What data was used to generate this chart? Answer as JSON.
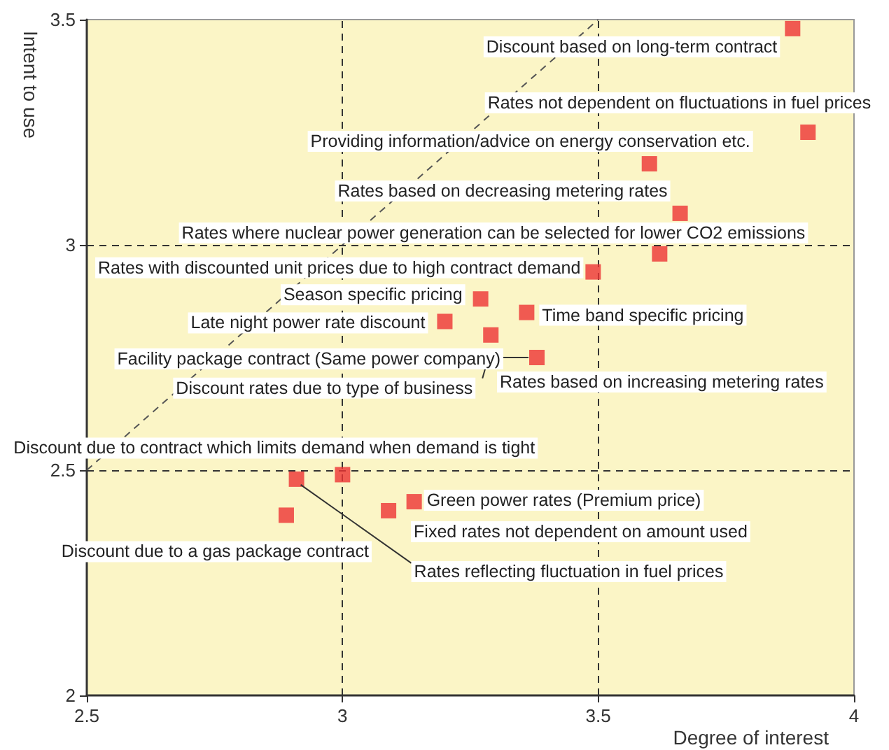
{
  "chart_data": {
    "type": "scatter",
    "xlabel": "Degree of interest",
    "ylabel": "Intent to use",
    "xlim": [
      2.5,
      4
    ],
    "xticks": [
      2.5,
      3,
      3.5,
      4
    ],
    "ylim": [
      2,
      3.5
    ],
    "yticks": [
      2,
      2.5,
      3,
      3.5
    ],
    "grid": false,
    "marker": "square",
    "series": [
      {
        "color": "#ee3333",
        "x": [
          3.88,
          3.91,
          3.6,
          3.66,
          3.62,
          3.49,
          3.27,
          3.36,
          3.2,
          3.29,
          3.38,
          2.91,
          3.0,
          2.89,
          3.09,
          3.14
        ],
        "values": [
          3.48,
          3.25,
          3.18,
          3.07,
          2.98,
          2.94,
          2.88,
          2.85,
          2.83,
          2.8,
          2.75,
          2.48,
          2.49,
          2.4,
          2.41,
          2.43
        ]
      },
      {
        "type": "line",
        "color": "#555555",
        "line_style": "dashed",
        "marker": "none",
        "x": [
          2.5,
          3.5
        ],
        "values": [
          2.5,
          3.5
        ]
      }
    ],
    "ref_lines": [
      {
        "axis": "x",
        "value": 3,
        "line_style": "dashed",
        "color": "#333333"
      },
      {
        "axis": "x",
        "value": 3.5,
        "line_style": "dashed",
        "color": "#333333"
      },
      {
        "axis": "y",
        "value": 2.5,
        "line_style": "dashed",
        "color": "#333333"
      },
      {
        "axis": "y",
        "value": 3,
        "line_style": "dashed",
        "color": "#333333"
      }
    ],
    "annotations": [
      {
        "text": "Discount based on long-term contract",
        "x": 3.88,
        "y": 3.48
      },
      {
        "text": "Rates not dependent on fluctuations in fuel prices",
        "x": 3.91,
        "y": 3.25
      },
      {
        "text": "Providing information/advice on energy conservation etc.",
        "x": 3.6,
        "y": 3.18
      },
      {
        "text": "Rates based on decreasing metering rates",
        "x": 3.66,
        "y": 3.07
      },
      {
        "text": "Rates where nuclear power generation can be selected for lower CO2 emissions",
        "x": 3.62,
        "y": 2.98
      },
      {
        "text": "Rates with discounted unit prices due to high contract demand",
        "x": 3.49,
        "y": 2.94
      },
      {
        "text": "Season specific pricing",
        "x": 3.27,
        "y": 2.88
      },
      {
        "text": "Time band specific pricing",
        "x": 3.36,
        "y": 2.85
      },
      {
        "text": "Late night power rate discount",
        "x": 3.2,
        "y": 2.83
      },
      {
        "text": "Discount rates due to type of business",
        "x": 3.29,
        "y": 2.8
      },
      {
        "text": "Facility package contract (Same power company)",
        "x": 3.38,
        "y": 2.75
      },
      "Rates based on increasing metering rates",
      {
        "text": "Discount due to contract which limits demand when demand is tight",
        "x": 3.0,
        "y": 2.49
      },
      {
        "text": "Green power rates (Premium price)",
        "x": 3.14,
        "y": 2.43
      },
      {
        "text": "Fixed rates not dependent on amount used",
        "x": 3.09,
        "y": 2.41
      },
      {
        "text": "Discount due to a gas package contract",
        "x": 2.89,
        "y": 2.4
      },
      {
        "text": "Rates reflecting fluctuation in fuel prices",
        "x": 2.91,
        "y": 2.48
      }
    ]
  }
}
